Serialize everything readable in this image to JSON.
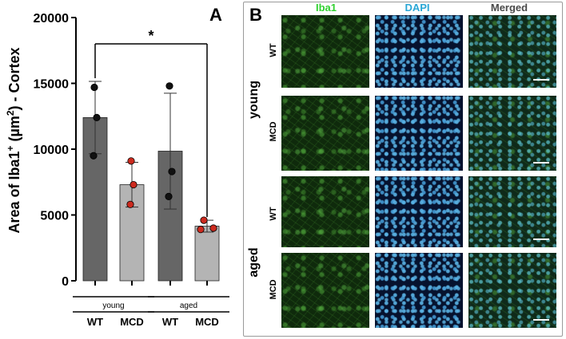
{
  "panel_a_letter": "A",
  "panel_b_letter": "B",
  "chart_data": {
    "type": "bar",
    "ylabel_main": "Area of Iba1",
    "ylabel_sup": "+",
    "ylabel_mid": " (µm",
    "ylabel_sup2": "2",
    "ylabel_end": ") - Cortex",
    "ylim": [
      0,
      20000
    ],
    "yticks": [
      "0",
      "5000",
      "10000",
      "15000",
      "20000"
    ],
    "ytick_values": [
      0,
      5000,
      10000,
      15000,
      20000
    ],
    "categories": [
      "WT",
      "MCD",
      "WT",
      "MCD"
    ],
    "groups": [
      "young",
      "aged"
    ],
    "values": [
      12400,
      7300,
      9850,
      4150
    ],
    "errors": [
      2750,
      1700,
      4400,
      450
    ],
    "bar_colors": [
      "#666666",
      "#b4b4b4",
      "#666666",
      "#b4b4b4"
    ],
    "points": [
      [
        14700,
        12400,
        9500
      ],
      [
        9100,
        7300,
        5800
      ],
      [
        14800,
        8300,
        6400
      ],
      [
        4600,
        4000,
        3900
      ]
    ],
    "point_colors": [
      "#111111",
      "#cc2a1e",
      "#111111",
      "#cc2a1e"
    ],
    "significance": {
      "label": "*",
      "from": 0,
      "to": 3
    }
  },
  "panel_b": {
    "columns": [
      {
        "label": "Iba1",
        "color": "#2fd12f"
      },
      {
        "label": "DAPI",
        "color": "#2aa7d6"
      },
      {
        "label": "Merged",
        "color": "#4a4a4a"
      }
    ],
    "groups": [
      "young",
      "aged"
    ],
    "rows": [
      "WT",
      "MCD",
      "WT",
      "MCD"
    ]
  }
}
